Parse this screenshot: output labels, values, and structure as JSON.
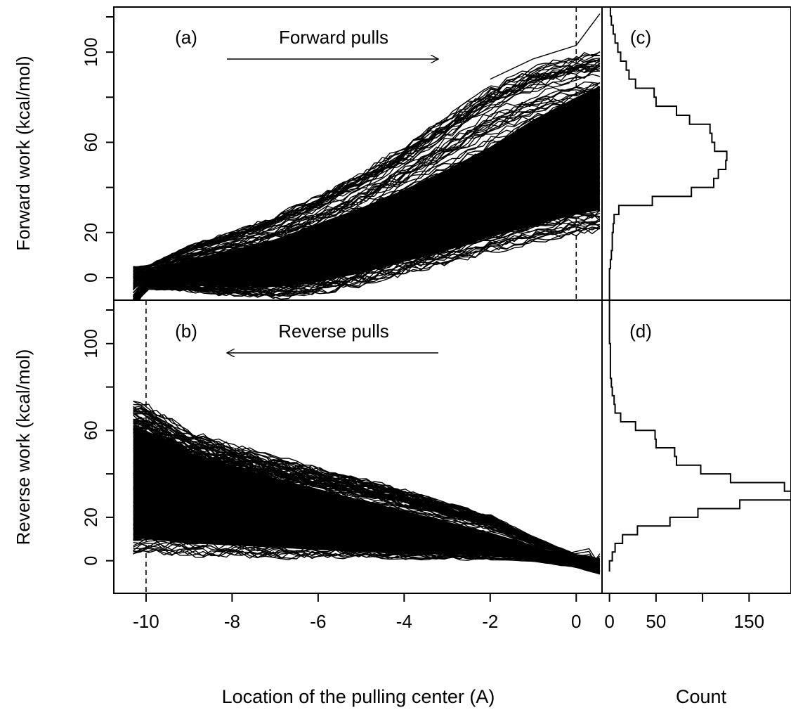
{
  "figure": {
    "xlabel_main": "Location of the pulling center (A)",
    "xlabel_hist": "Count"
  },
  "chart_data": [
    {
      "id": "a",
      "type": "line",
      "panel_label": "(a)",
      "annotation": "Forward pulls",
      "arrow_direction": "right",
      "ylabel": "Forward work (kcal/mol)",
      "xlim": [
        -10.75,
        0.6
      ],
      "ylim": [
        -10,
        120
      ],
      "x_ticks": [
        -10,
        -8,
        -6,
        -4,
        -2,
        0
      ],
      "y_ticks": [
        0,
        20,
        60,
        100
      ],
      "y_minor_ticks": [
        40,
        80
      ],
      "dashed_vline_x": 0,
      "trajectory_count_visible": "many (dense black band)",
      "envelope": {
        "x": [
          -10.3,
          -10.0,
          -9.0,
          -8.0,
          -7.0,
          -6.0,
          -5.0,
          -4.0,
          -3.0,
          -2.0,
          -1.0,
          0.0,
          0.55
        ],
        "upper": [
          5,
          5,
          14,
          20,
          27,
          36,
          46,
          58,
          71,
          84,
          93,
          98,
          100
        ],
        "lower": [
          -15,
          -5,
          -6,
          -8,
          -9,
          -7,
          -3,
          2,
          6,
          11,
          15,
          19,
          20
        ],
        "dense_upper": [
          3,
          3,
          8,
          12,
          17,
          24,
          31,
          39,
          48,
          58,
          70,
          80,
          85
        ],
        "dense_lower": [
          -5,
          -2,
          -3,
          -4,
          -4,
          -2,
          2,
          7,
          12,
          18,
          23,
          28,
          30
        ]
      },
      "outlier_line": {
        "x": [
          -2.0,
          -1.0,
          0.0,
          0.55
        ],
        "y": [
          88,
          97,
          103,
          117
        ]
      }
    },
    {
      "id": "b",
      "type": "line",
      "panel_label": "(b)",
      "annotation": "Reverse pulls",
      "arrow_direction": "left",
      "ylabel": "Reverse work (kcal/mol)",
      "xlim": [
        -10.75,
        0.6
      ],
      "ylim": [
        -15,
        120
      ],
      "x_ticks": [
        -10,
        -8,
        -6,
        -4,
        -2,
        0
      ],
      "y_ticks": [
        0,
        20,
        60,
        100
      ],
      "y_minor_ticks": [
        40,
        80
      ],
      "dashed_vline_x": -10,
      "trajectory_count_visible": "many (dense black band)",
      "envelope": {
        "x": [
          -10.3,
          -10.0,
          -9.0,
          -8.0,
          -7.0,
          -6.0,
          -5.0,
          -4.0,
          -3.0,
          -2.0,
          -1.0,
          0.0,
          0.55
        ],
        "upper": [
          74,
          73,
          60,
          54,
          48,
          43,
          38,
          33,
          27,
          21,
          11,
          3,
          1
        ],
        "lower": [
          3,
          4,
          3,
          3,
          2,
          2,
          2,
          1,
          1,
          1,
          0,
          -3,
          -6
        ],
        "dense_upper": [
          62,
          60,
          50,
          44,
          38,
          33,
          28,
          23,
          18,
          13,
          7,
          1,
          0
        ],
        "dense_lower": [
          10,
          10,
          8,
          7,
          6,
          5,
          4,
          3,
          3,
          2,
          1,
          -1,
          -3
        ]
      }
    },
    {
      "id": "c",
      "type": "histogram",
      "orientation": "horizontal",
      "panel_label": "(c)",
      "xlabel": "Count",
      "xlim": [
        -8,
        195
      ],
      "ylim": [
        -10,
        120
      ],
      "x_ticks": [
        0,
        50,
        150
      ],
      "bins": {
        "edges": [
          -10,
          0,
          4,
          8,
          12,
          16,
          20,
          24,
          28,
          32,
          36,
          40,
          44,
          48,
          52,
          56,
          60,
          64,
          68,
          72,
          76,
          80,
          84,
          88,
          92,
          96,
          100,
          104,
          108,
          112,
          116,
          120
        ],
        "counts": [
          0,
          0,
          1,
          2,
          3,
          3,
          4,
          5,
          10,
          46,
          88,
          112,
          117,
          125,
          126,
          113,
          110,
          108,
          86,
          72,
          50,
          48,
          28,
          21,
          18,
          12,
          9,
          6,
          4,
          2,
          1
        ]
      }
    },
    {
      "id": "d",
      "type": "histogram",
      "orientation": "horizontal",
      "panel_label": "(d)",
      "xlabel": "Count",
      "xlim": [
        -8,
        195
      ],
      "ylim": [
        -15,
        120
      ],
      "x_ticks": [
        0,
        50,
        150
      ],
      "bins": {
        "edges": [
          -5,
          0,
          4,
          8,
          12,
          16,
          20,
          24,
          28,
          32,
          36,
          40,
          44,
          48,
          52,
          56,
          60,
          64,
          68,
          72,
          76,
          80,
          84,
          88,
          92,
          96,
          100,
          104,
          108,
          112,
          116,
          120
        ],
        "counts": [
          0,
          3,
          6,
          14,
          30,
          65,
          95,
          140,
          195,
          188,
          130,
          98,
          72,
          70,
          50,
          49,
          28,
          12,
          6,
          5,
          3,
          2,
          1,
          1,
          1,
          1,
          0,
          0,
          0,
          0,
          0
        ]
      }
    }
  ]
}
